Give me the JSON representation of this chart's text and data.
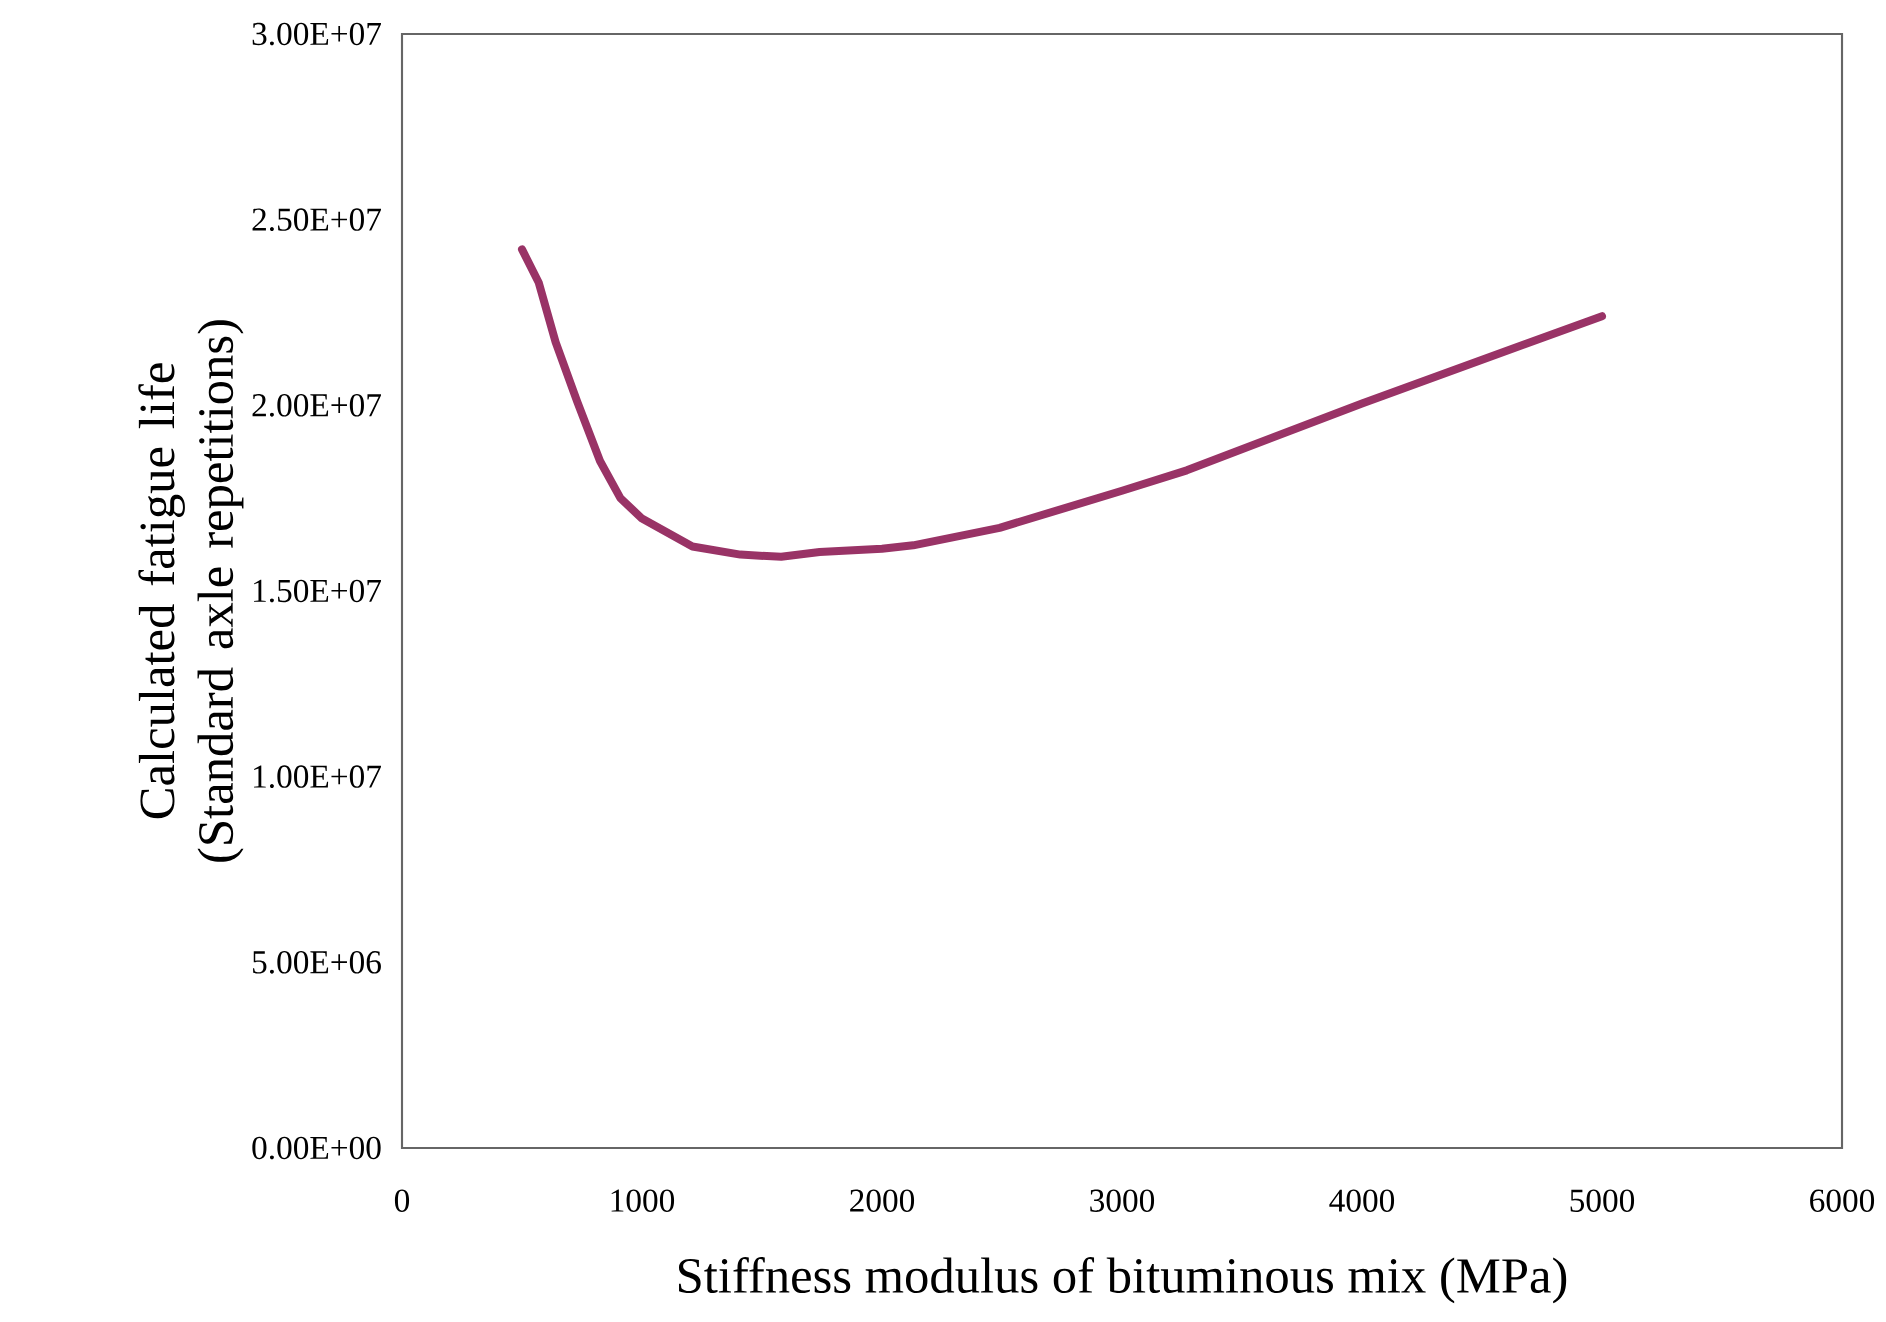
{
  "chart_data": {
    "type": "line",
    "xlabel": "Stiffness modulus of bituminous mix (MPa)",
    "ylabel": "Calculated fatigue life (Standard axle repetitions)",
    "x": [
      500,
      570,
      640,
      730,
      825,
      910,
      1000,
      1210,
      1410,
      1580,
      1740,
      2000,
      2130,
      2490,
      3000,
      3270,
      4000,
      5000
    ],
    "series": [
      {
        "color": "#993366",
        "values": [
          24200000,
          23300000,
          21700000,
          20100000,
          18500000,
          17500000,
          16950000,
          16200000,
          15980000,
          15920000,
          16050000,
          16140000,
          16230000,
          16700000,
          17700000,
          18250000,
          20050000,
          22400000
        ]
      }
    ],
    "xlim": [
      0,
      6000
    ],
    "ylim": [
      0,
      30000000
    ],
    "xticks": [
      0,
      1000,
      2000,
      3000,
      4000,
      5000,
      6000
    ],
    "yticks": [
      {
        "value": 0,
        "label": "0.00E+00"
      },
      {
        "value": 5000000,
        "label": "5.00E+06"
      },
      {
        "value": 10000000,
        "label": "1.00E+07"
      },
      {
        "value": 15000000,
        "label": "1.50E+07"
      },
      {
        "value": 20000000,
        "label": "2.00E+07"
      },
      {
        "value": 25000000,
        "label": "2.50E+07"
      },
      {
        "value": 30000000,
        "label": "3.00E+07"
      }
    ],
    "grid": false,
    "marker": "none",
    "line_style": "solid"
  }
}
